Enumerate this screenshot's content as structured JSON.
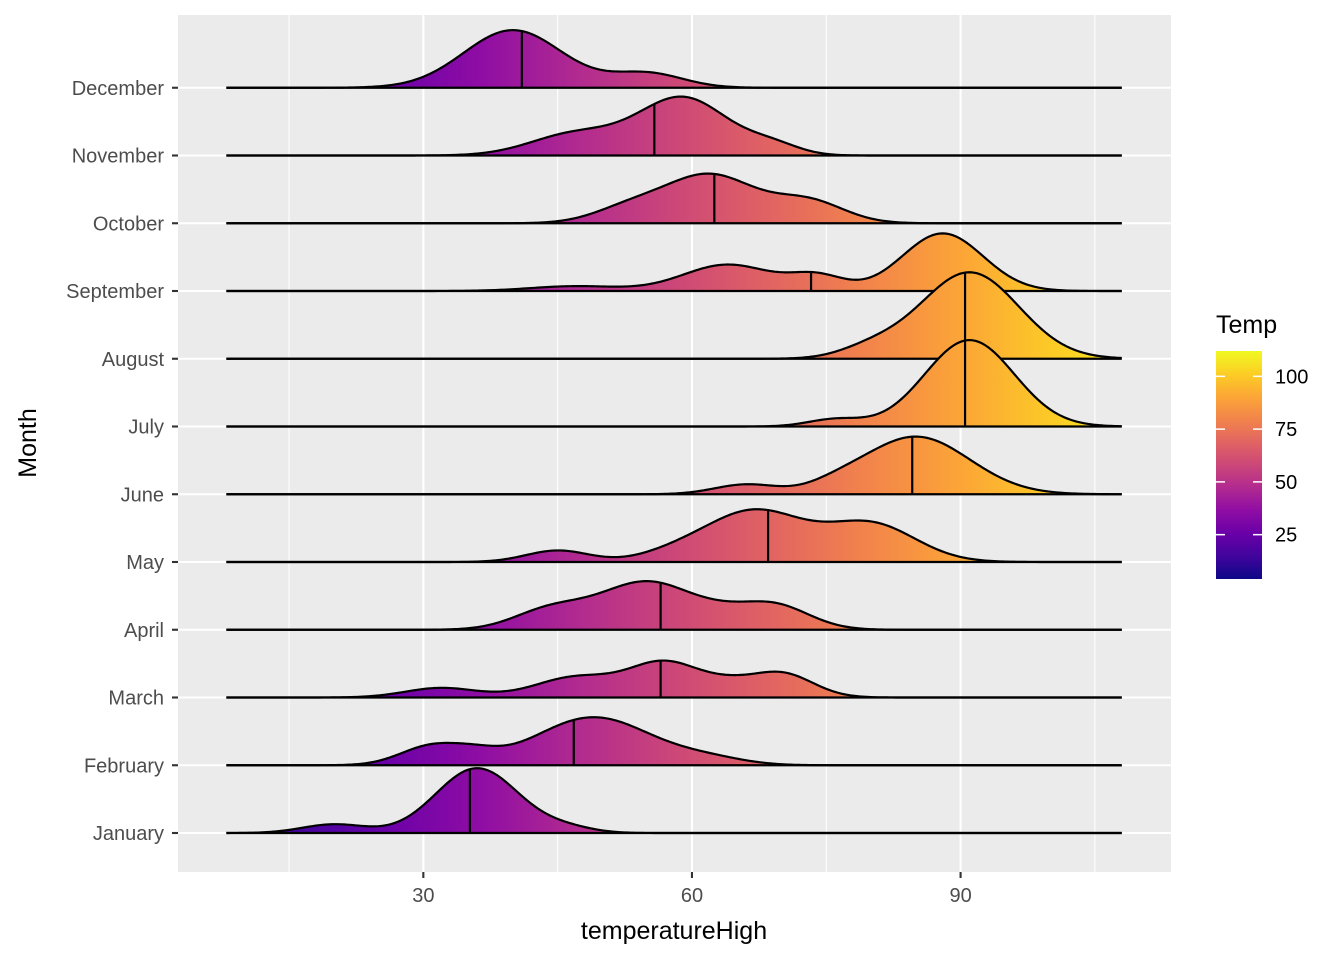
{
  "chart_data": {
    "type": "ridgeline",
    "xlabel": "temperatureHigh",
    "ylabel": "Month",
    "x_ticks": [
      30,
      60,
      90
    ],
    "xlim": [
      2.6,
      113.5
    ],
    "grid": true,
    "legend": {
      "title": "Temp",
      "position": "right",
      "range": [
        4,
        112
      ],
      "ticks": [
        25,
        50,
        75,
        100
      ],
      "palette": [
        "#0D0887",
        "#41049D",
        "#6A00A8",
        "#8F0DA4",
        "#B12A90",
        "#CC4778",
        "#E16462",
        "#F2844B",
        "#FCA636",
        "#FCCE25",
        "#F0F921"
      ]
    },
    "categories": [
      "January",
      "February",
      "March",
      "April",
      "May",
      "June",
      "July",
      "August",
      "September",
      "October",
      "November",
      "December"
    ],
    "series": [
      {
        "name": "January",
        "range": [
          8,
          108
        ],
        "median": 35.2,
        "components": [
          [
            36,
            4.6,
            1.35
          ],
          [
            20,
            3.5,
            0.18
          ],
          [
            46,
            3.0,
            0.1
          ]
        ]
      },
      {
        "name": "February",
        "range": [
          8,
          108
        ],
        "median": 46.8,
        "components": [
          [
            49,
            6.5,
            1.0
          ],
          [
            31,
            3.5,
            0.4
          ],
          [
            36,
            2.6,
            0.15
          ],
          [
            62,
            4.0,
            0.12
          ]
        ]
      },
      {
        "name": "March",
        "range": [
          8,
          108
        ],
        "median": 56.5,
        "components": [
          [
            57,
            4.0,
            0.72
          ],
          [
            70,
            3.5,
            0.5
          ],
          [
            47,
            4.5,
            0.42
          ],
          [
            32,
            4.0,
            0.2
          ],
          [
            64,
            3.0,
            0.2
          ]
        ]
      },
      {
        "name": "April",
        "range": [
          8,
          108
        ],
        "median": 56.5,
        "components": [
          [
            55,
            5.5,
            1.0
          ],
          [
            69,
            4.0,
            0.52
          ],
          [
            44,
            4.0,
            0.38
          ],
          [
            63,
            3.0,
            0.1
          ]
        ]
      },
      {
        "name": "May",
        "range": [
          8,
          108
        ],
        "median": 68.5,
        "components": [
          [
            67,
            5.5,
            1.06
          ],
          [
            80,
            5.0,
            0.78
          ],
          [
            45,
            3.5,
            0.24
          ],
          [
            58,
            4.0,
            0.15
          ]
        ]
      },
      {
        "name": "June",
        "range": [
          8,
          108
        ],
        "median": 84.6,
        "components": [
          [
            85,
            6.0,
            1.2
          ],
          [
            66,
            3.5,
            0.2
          ],
          [
            76,
            3.0,
            0.1
          ]
        ]
      },
      {
        "name": "July",
        "range": [
          8,
          108
        ],
        "median": 90.5,
        "components": [
          [
            91,
            5.0,
            1.8
          ],
          [
            76,
            3.0,
            0.15
          ]
        ]
      },
      {
        "name": "August",
        "range": [
          8,
          108
        ],
        "median": 90.5,
        "components": [
          [
            91,
            5.5,
            1.8
          ],
          [
            80,
            3.5,
            0.2
          ]
        ]
      },
      {
        "name": "September",
        "range": [
          8,
          108
        ],
        "median": 73.3,
        "components": [
          [
            88,
            4.5,
            1.2
          ],
          [
            64,
            5.0,
            0.55
          ],
          [
            74,
            3.0,
            0.3
          ],
          [
            47,
            5.0,
            0.1
          ]
        ]
      },
      {
        "name": "October",
        "range": [
          8,
          108
        ],
        "median": 62.5,
        "components": [
          [
            62,
            5.0,
            1.0
          ],
          [
            73,
            4.0,
            0.45
          ],
          [
            53,
            4.0,
            0.3
          ]
        ]
      },
      {
        "name": "November",
        "range": [
          8,
          108
        ],
        "median": 55.8,
        "components": [
          [
            59,
            5.0,
            1.2
          ],
          [
            47,
            5.0,
            0.45
          ],
          [
            69,
            3.0,
            0.2
          ]
        ]
      },
      {
        "name": "December",
        "range": [
          8,
          108
        ],
        "median": 41.0,
        "components": [
          [
            40,
            5.5,
            1.2
          ],
          [
            55,
            4.0,
            0.3
          ]
        ]
      }
    ]
  }
}
